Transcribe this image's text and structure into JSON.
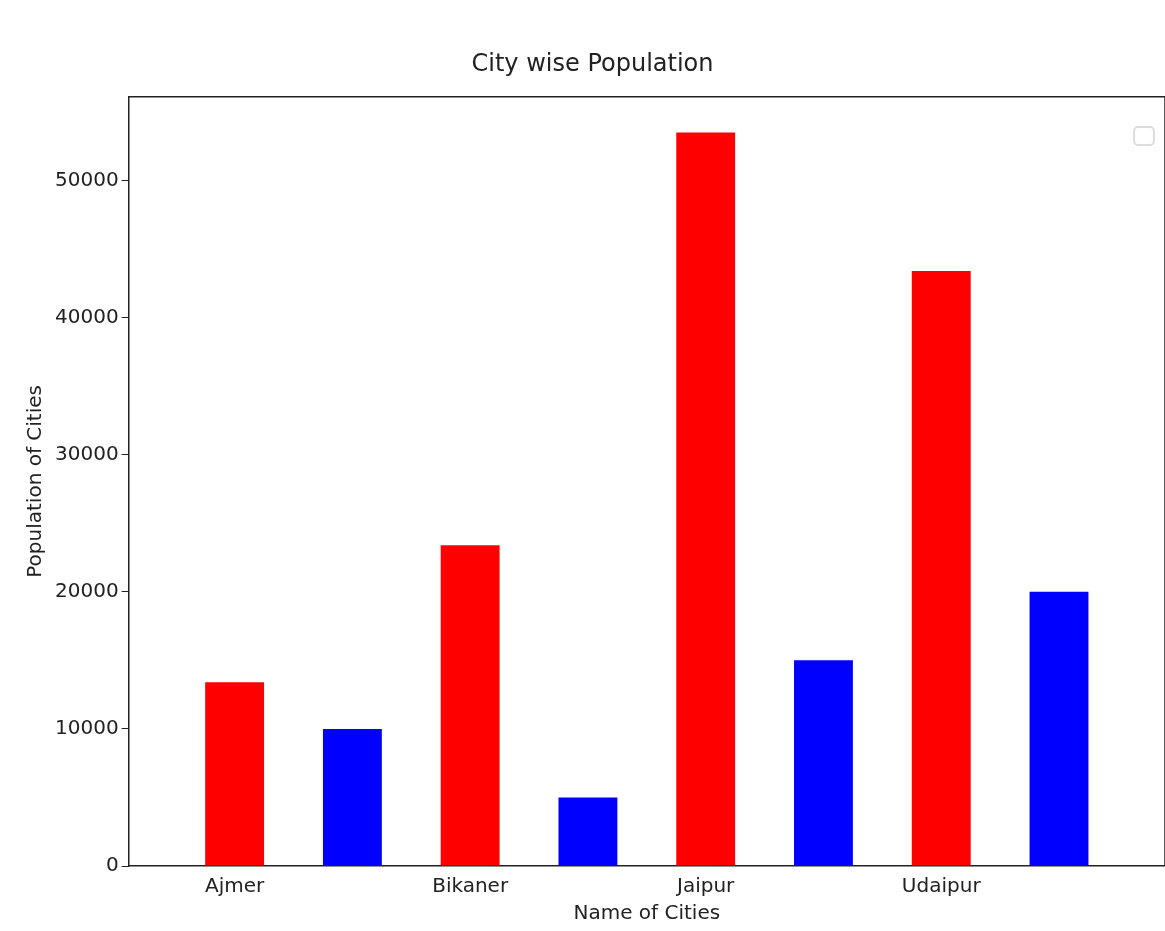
{
  "chart_data": {
    "type": "bar",
    "title": "City wise Population",
    "xlabel": "Name of Cities",
    "ylabel": "Population of Cities",
    "categories": [
      "Ajmer",
      "Bikaner",
      "Jaipur",
      "Udaipur"
    ],
    "series": [
      {
        "color": "#ff0000",
        "values": [
          13400,
          23400,
          53500,
          43400
        ]
      },
      {
        "color": "#0000ff",
        "values": [
          10000,
          5000,
          15000,
          20000
        ]
      }
    ],
    "ylim": [
      0,
      56100
    ],
    "yticks": [
      0,
      10000,
      20000,
      30000,
      40000,
      50000
    ],
    "grid": false
  }
}
